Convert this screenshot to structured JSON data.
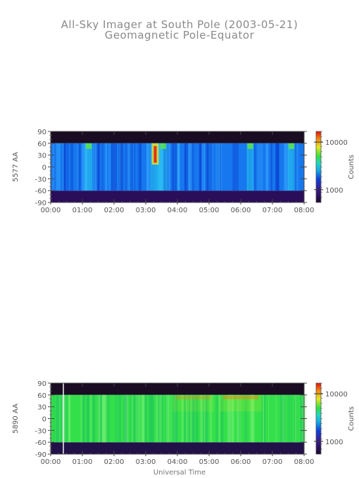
{
  "title": "All-Sky Imager at South Pole (2003-05-21)",
  "subtitle": "Geomagnetic Pole-Equator",
  "xlabel": "Universal Time",
  "chart_data": [
    {
      "type": "heatmap",
      "ylabel": "5577 AA",
      "colorbar_label": "Counts",
      "colorbar_ticks": [
        "10000",
        "1000"
      ],
      "x_ticks": [
        "00:00",
        "01:00",
        "02:00",
        "03:00",
        "04:00",
        "05:00",
        "06:00",
        "07:00",
        "08:00"
      ],
      "y_ticks": [
        "90",
        "60",
        "30",
        "0",
        "-30",
        "-60",
        "-90"
      ],
      "xlim": [
        0,
        8
      ],
      "ylim": [
        -90,
        90
      ],
      "colorscale": "log",
      "base_color": "#1677ee",
      "features": [
        {
          "time_hours": 1.2,
          "brightness": 0.45
        },
        {
          "time_hours": 3.3,
          "brightness": 1.0
        },
        {
          "time_hours": 3.55,
          "brightness": 0.6
        },
        {
          "time_hours": 6.3,
          "brightness": 0.3
        },
        {
          "time_hours": 7.6,
          "brightness": 0.4
        }
      ]
    },
    {
      "type": "heatmap",
      "ylabel": "5890 AA",
      "colorbar_label": "Counts",
      "colorbar_ticks": [
        "10000",
        "1000"
      ],
      "x_ticks": [
        "00:00",
        "01:00",
        "02:00",
        "03:00",
        "04:00",
        "05:00",
        "06:00",
        "07:00",
        "08:00"
      ],
      "y_ticks": [
        "90",
        "60",
        "30",
        "0",
        "-30",
        "-60",
        "-90"
      ],
      "xlim": [
        0,
        8
      ],
      "ylim": [
        -90,
        90
      ],
      "colorscale": "log",
      "base_color": "#33e04a",
      "features": [
        {
          "time_hours": 0.4,
          "brightness": 1.0
        },
        {
          "time_hours": 4.5,
          "brightness": 0.5
        },
        {
          "time_hours": 6.0,
          "brightness": 0.7
        }
      ]
    }
  ]
}
